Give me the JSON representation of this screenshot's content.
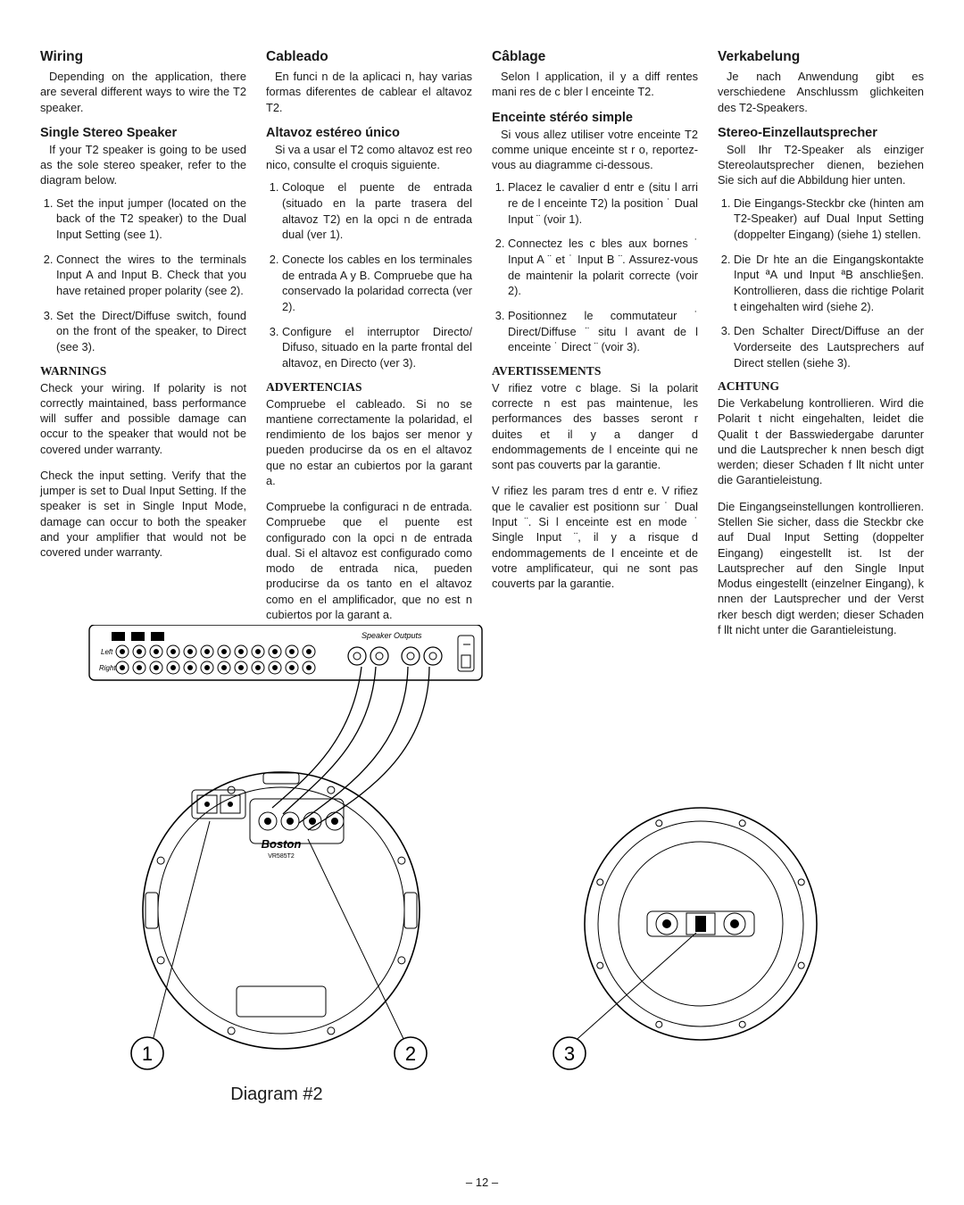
{
  "page_number": "– 12 –",
  "diagram_caption": "Diagram #2",
  "cols": {
    "en": {
      "h1": "Wiring",
      "intro": "Depending on the application, there are several different ways to wire the T2 speaker.",
      "h2": "Single Stereo Speaker",
      "p2": "If your T2 speaker is going to be used as the sole stereo speaker, refer to the diagram below.",
      "steps": [
        "Set the input jumper (located on the back of the T2 speaker) to the Dual Input Setting (see 1).",
        "Connect the wires to the terminals Input A and Input B. Check that you have retained proper polarity (see 2).",
        "Set the Direct/Diffuse switch, found on the front of the speaker, to Direct (see 3)."
      ],
      "warn_h": "WARNINGS",
      "warn1": "Check your wiring. If polarity is not correctly maintained, bass performance will suffer and possible damage can occur to the speaker that would not be covered under warranty.",
      "warn2": "Check the input setting. Verify that the jumper is set to Dual Input Setting. If the speaker is set in Single Input Mode, damage can occur to both the speaker and your amplifier that would not be covered under warranty."
    },
    "es": {
      "h1": "Cableado",
      "intro": "En funci n de la aplicaci n, hay varias formas diferentes de cablear el altavoz T2.",
      "h2": "Altavoz estéreo único",
      "p2": "Si va a usar el T2 como altavoz est reo nico, consulte el croquis siguiente.",
      "steps": [
        "Coloque el puente de entrada (situado en la parte trasera del altavoz T2) en la opci n de entrada dual (ver 1).",
        "Conecte los cables en los terminales de entrada A y B. Compruebe que ha conservado la polaridad correcta (ver 2).",
        "Configure el interruptor Directo/ Difuso, situado en la parte frontal del altavoz, en Directo (ver 3)."
      ],
      "warn_h": "ADVERTENCIAS",
      "warn1": "Compruebe el cableado. Si no se mantiene correctamente la polaridad, el rendimiento de los bajos ser menor y pueden producirse da os en el altavoz que no estar an cubiertos por la garant a.",
      "warn2": "Compruebe la configuraci n de entrada. Compruebe que el puente est configurado con la opci n de entrada dual. Si el altavoz est configurado como modo de entrada nica, pueden producirse da os tanto en el altavoz como en el amplificador, que no est n cubiertos por la garant a."
    },
    "fr": {
      "h1": "Câblage",
      "intro": "Selon l application, il y a diff rentes mani res de c bler l enceinte T2.",
      "h2": "Enceinte stéréo simple",
      "p2": "Si vous allez utiliser votre enceinte T2 comme unique enceinte st r o, reportez-vous au diagramme ci-dessous.",
      "steps": [
        "Placez le cavalier d entr e (situ l arri re de l enceinte T2)  la position ˙ Dual Input ¨ (voir 1).",
        "Connectez les c bles aux bornes ˙ Input A ¨ et ˙ Input B ¨. Assurez-vous de maintenir la polarit correcte (voir 2).",
        "Positionnez le commutateur ˙ Direct/Diffuse ¨ situ  l avant de l enceinte  ˙ Direct ¨ (voir 3)."
      ],
      "warn_h": "AVERTISSEMENTS",
      "warn1": "V rifiez votre c blage. Si la polarit correcte n est pas maintenue, les performances des basses seront r duites et il y a danger d endommagements de l enceinte qui ne sont pas couverts par la garantie.",
      "warn2": "V rifiez les param tres d entr e. V rifiez que le cavalier est positionn sur ˙ Dual Input ¨. Si l enceinte est en mode ˙ Single Input ¨, il y a risque d endommagements de l enceinte et de votre amplificateur, qui ne sont pas couverts par la garantie."
    },
    "de": {
      "h1": "Verkabelung",
      "intro": "Je nach Anwendung gibt es verschiedene Anschlussm glichkeiten des T2-Speakers.",
      "h2": "Stereo-Einzellautsprecher",
      "p2": "Soll Ihr T2-Speaker als einziger Stereolautsprecher dienen, beziehen Sie sich auf die Abbildung hier unten.",
      "steps": [
        "Die Eingangs-Steckbr cke (hinten am T2-Speaker) auf Dual Input Setting (doppelter Eingang) (siehe 1) stellen.",
        "Die Dr hte an die Eingangskontakte Input ªA und Input ªB anschlie§en. Kontrollieren, dass die richtige Polarit t eingehalten wird (siehe 2).",
        "Den Schalter Direct/Diffuse an der Vorderseite des Lautsprechers auf Direct stellen (siehe 3)."
      ],
      "warn_h": "ACHTUNG",
      "warn1": "Die Verkabelung kontrollieren. Wird die Polarit t nicht eingehalten, leidet die Qualit t der Basswiedergabe darunter und die Lautsprecher k nnen besch digt werden; dieser Schaden f llt nicht unter die Garantieleistung.",
      "warn2": "Die Eingangseinstellungen kontrollieren. Stellen Sie sicher, dass die Steckbr cke auf Dual Input Setting (doppelter Eingang) eingestellt ist. Ist der Lautsprecher auf den Single Input Modus eingestellt (einzelner Eingang), k nnen der Lautsprecher und der Verst rker besch digt werden; dieser Schaden f llt nicht unter die Garantieleistung."
    }
  },
  "diagram": {
    "amp_label": "Speaker Outputs",
    "left_label": "Left",
    "right_label": "Right",
    "brand": "Boston",
    "model": "VR585T2",
    "circles": [
      "1",
      "2",
      "3"
    ],
    "colors": {
      "stroke": "#000000",
      "bg": "#ffffff",
      "fill_black": "#000000"
    }
  }
}
